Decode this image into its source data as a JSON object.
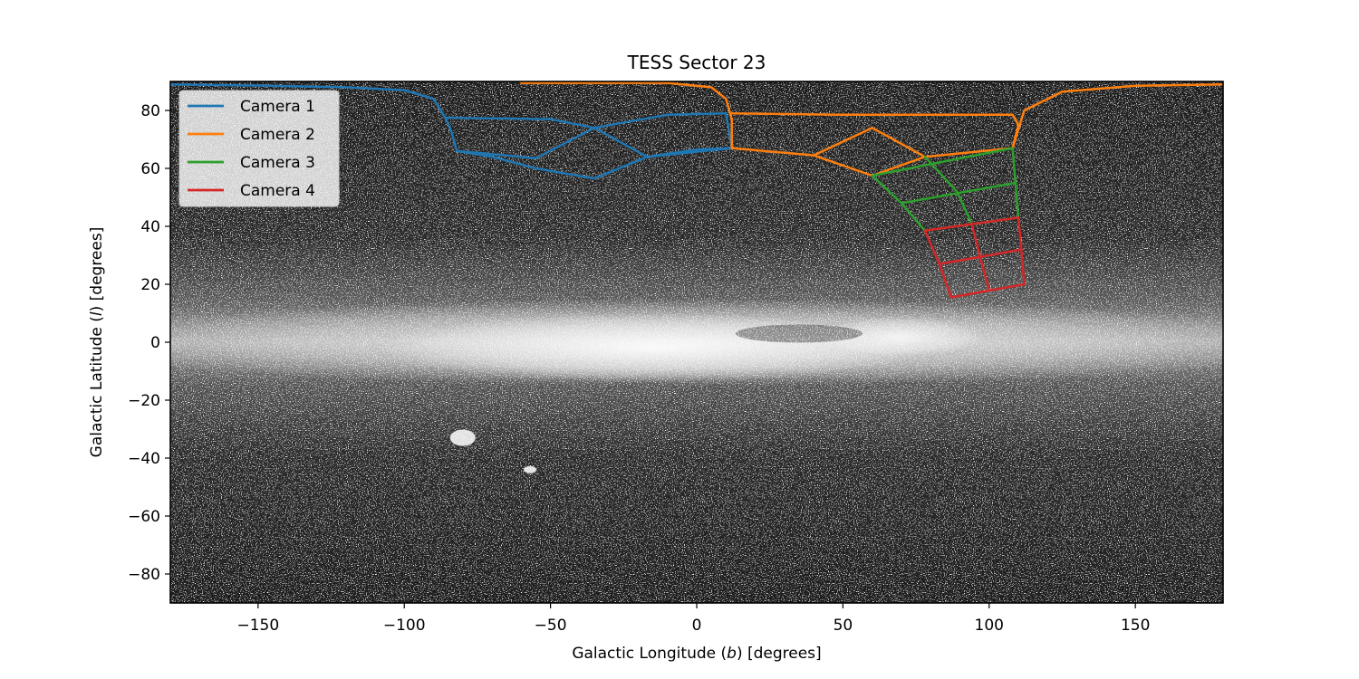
{
  "chart_data": {
    "type": "line",
    "title": "TESS Sector 23",
    "xlabel_pre": "Galactic Longitude (",
    "xlabel_sym": "b",
    "xlabel_post": ") [degrees]",
    "ylabel_pre": "Galactic Latitude (",
    "ylabel_sym": "l",
    "ylabel_post": ") [degrees]",
    "xlim": [
      -180,
      180
    ],
    "ylim": [
      -90,
      90
    ],
    "xticks": [
      -150,
      -100,
      -50,
      0,
      50,
      100,
      150
    ],
    "yticks": [
      -80,
      -60,
      -40,
      -20,
      0,
      20,
      40,
      60,
      80
    ],
    "xtick_labels": [
      "−150",
      "−100",
      "−50",
      "0",
      "50",
      "100",
      "150"
    ],
    "ytick_labels": [
      "−80",
      "−60",
      "−40",
      "−20",
      "0",
      "20",
      "40",
      "60",
      "80"
    ],
    "background": "all-sky galactic star map (grayscale)",
    "legend_position": "upper-left",
    "series": [
      {
        "name": "Camera 1",
        "color": "#1f77b4",
        "segments": [
          [
            [
              -180,
              89
            ],
            [
              -150,
              88.6
            ],
            [
              -120,
              88
            ],
            [
              -100,
              87
            ],
            [
              -90,
              84
            ],
            [
              -86,
              77.5
            ]
          ],
          [
            [
              -86,
              77.5
            ],
            [
              -50,
              77
            ],
            [
              -35,
              74
            ],
            [
              -17,
              64
            ]
          ],
          [
            [
              -86,
              77.5
            ],
            [
              -84,
              73
            ],
            [
              -82,
              66
            ]
          ],
          [
            [
              -82,
              66
            ],
            [
              -55,
              63.5
            ]
          ],
          [
            [
              -82,
              66
            ],
            [
              -70,
              64
            ],
            [
              -55,
              60
            ],
            [
              -35,
              56.5
            ],
            [
              -17,
              64
            ],
            [
              12,
              67
            ]
          ],
          [
            [
              -55,
              63.5
            ],
            [
              -35,
              74
            ],
            [
              -10,
              78.5
            ],
            [
              10,
              79
            ]
          ],
          [
            [
              10,
              79
            ],
            [
              12,
              67
            ]
          ],
          [
            [
              -17,
              64
            ],
            [
              0,
              66.5
            ],
            [
              12,
              67
            ]
          ]
        ]
      },
      {
        "name": "Camera 2",
        "color": "#ff7f0e",
        "segments": [
          [
            [
              -60,
              89.5
            ],
            [
              -10,
              89.5
            ],
            [
              5,
              88
            ],
            [
              10,
              84
            ],
            [
              12,
              77
            ],
            [
              12,
              67
            ]
          ],
          [
            [
              12,
              79
            ],
            [
              50,
              78.5
            ],
            [
              108,
              78.5
            ]
          ],
          [
            [
              12,
              67
            ],
            [
              40,
              64.5
            ],
            [
              60,
              57.5
            ],
            [
              78,
              64
            ],
            [
              108,
              67
            ]
          ],
          [
            [
              40,
              64.5
            ],
            [
              60,
              74
            ],
            [
              78,
              64
            ]
          ],
          [
            [
              108,
              78.5
            ],
            [
              110,
              75
            ],
            [
              108,
              67
            ]
          ],
          [
            [
              108,
              67
            ],
            [
              112,
              80
            ],
            [
              125,
              86.5
            ],
            [
              150,
              88.5
            ],
            [
              180,
              89
            ]
          ]
        ]
      },
      {
        "name": "Camera 3",
        "color": "#2ca02c",
        "segments": [
          [
            [
              60,
              57.5
            ],
            [
              108,
              67
            ]
          ],
          [
            [
              70,
              48
            ],
            [
              109,
              55
            ]
          ],
          [
            [
              78,
              38.5
            ],
            [
              110,
              43
            ]
          ],
          [
            [
              60,
              57.5
            ],
            [
              70,
              48
            ],
            [
              78,
              38.5
            ]
          ],
          [
            [
              78,
              64
            ],
            [
              89,
              52
            ],
            [
              94,
              41
            ]
          ],
          [
            [
              108,
              67
            ],
            [
              109,
              55
            ],
            [
              110,
              43
            ]
          ]
        ]
      },
      {
        "name": "Camera 4",
        "color": "#d62728",
        "segments": [
          [
            [
              78,
              38.5
            ],
            [
              110,
              43
            ]
          ],
          [
            [
              83,
              27
            ],
            [
              111,
              32
            ]
          ],
          [
            [
              87,
              15.5
            ],
            [
              112,
              20
            ]
          ],
          [
            [
              78,
              38.5
            ],
            [
              83,
              27
            ],
            [
              87,
              15.5
            ]
          ],
          [
            [
              94,
              41
            ],
            [
              97,
              29
            ],
            [
              100,
              18
            ]
          ],
          [
            [
              110,
              43
            ],
            [
              111,
              32
            ],
            [
              112,
              20
            ]
          ]
        ]
      }
    ]
  }
}
